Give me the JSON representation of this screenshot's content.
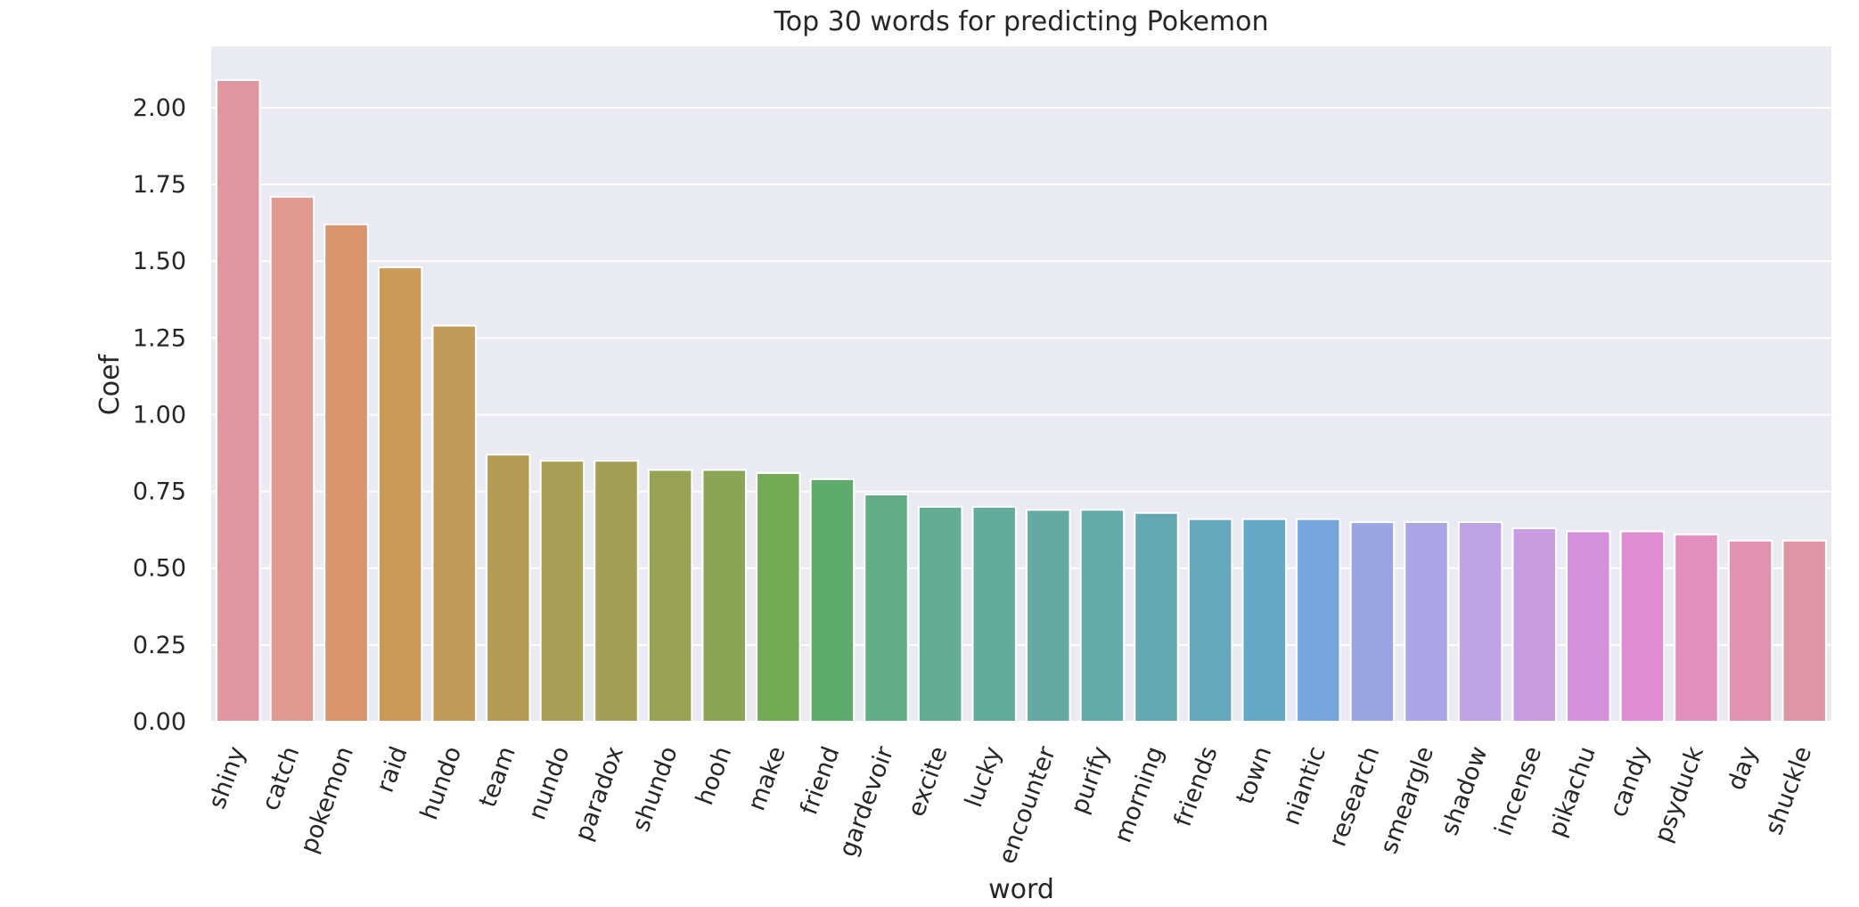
{
  "chart_data": {
    "type": "bar",
    "title": "Top 30 words for predicting Pokemon",
    "xlabel": "word",
    "ylabel": "Coef",
    "ylim": [
      0,
      2.2
    ],
    "yticks": [
      "0.00",
      "0.25",
      "0.50",
      "0.75",
      "1.00",
      "1.25",
      "1.50",
      "1.75",
      "2.00"
    ],
    "grid": true,
    "legend": "none",
    "categories": [
      "shiny",
      "catch",
      "pokemon",
      "raid",
      "hundo",
      "team",
      "nundo",
      "paradox",
      "shundo",
      "hooh",
      "make",
      "friend",
      "gardevoir",
      "excite",
      "lucky",
      "encounter",
      "purify",
      "morning",
      "friends",
      "town",
      "niantic",
      "research",
      "smeargle",
      "shadow",
      "incense",
      "pikachu",
      "candy",
      "psyduck",
      "day",
      "shuckle"
    ],
    "values": [
      2.09,
      1.71,
      1.62,
      1.48,
      1.29,
      0.87,
      0.85,
      0.85,
      0.82,
      0.82,
      0.81,
      0.79,
      0.74,
      0.7,
      0.7,
      0.69,
      0.69,
      0.68,
      0.66,
      0.66,
      0.66,
      0.65,
      0.65,
      0.65,
      0.63,
      0.62,
      0.62,
      0.61,
      0.59,
      0.59
    ],
    "colors": [
      "#e0969f",
      "#de9a8e",
      "#d9956d",
      "#cc9a57",
      "#bf9a58",
      "#b49c57",
      "#a99e56",
      "#a09f55",
      "#97a255",
      "#8aa655",
      "#74aa55",
      "#5fab6c",
      "#62ab86",
      "#63ab93",
      "#63ab9b",
      "#64aaa2",
      "#64aaaa",
      "#64a9b1",
      "#65a8bb",
      "#65a8c6",
      "#76a6dc",
      "#99a6e1",
      "#aba5e5",
      "#bca4e6",
      "#c99ce2",
      "#d58fdd",
      "#dd8dd0",
      "#e08fbe",
      "#e092ae",
      "#de95a5"
    ]
  }
}
